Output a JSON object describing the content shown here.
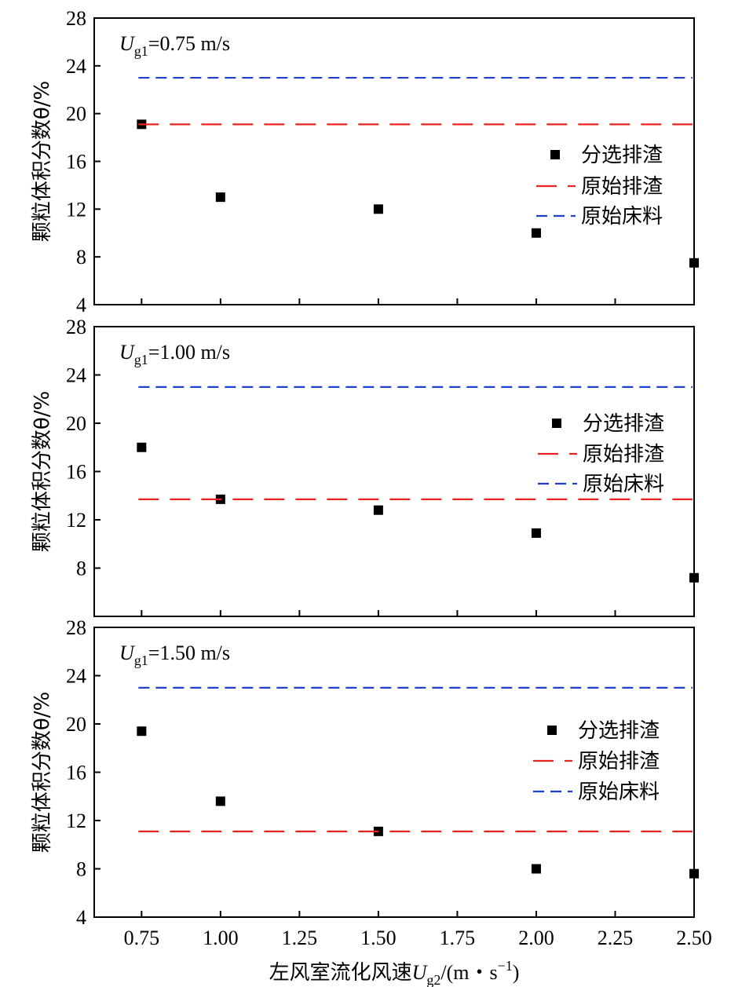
{
  "chart_data": [
    {
      "type": "scatter",
      "title": "",
      "annotation": {
        "symbol": "U",
        "subscript": "g1",
        "text": "=0.75 m/s"
      },
      "x": [
        0.75,
        1.0,
        1.5,
        2.0,
        2.5
      ],
      "xlim": [
        0.6,
        2.5
      ],
      "ylim": [
        4,
        28
      ],
      "yticks": [
        4,
        8,
        12,
        16,
        20,
        24,
        28
      ],
      "ylabel": "颗粒体积分数θ/%",
      "series": [
        {
          "name": "分选排渣",
          "kind": "markers",
          "color": "#000000",
          "values": [
            19.1,
            13.0,
            12.0,
            10.0,
            7.5
          ]
        },
        {
          "name": "原始排渣",
          "kind": "hline",
          "color": "#e8231f",
          "value": 19.1
        },
        {
          "name": "原始床料",
          "kind": "hline",
          "color": "#1f3fd0",
          "value": 23.0
        }
      ],
      "legend_position": "right"
    },
    {
      "type": "scatter",
      "title": "",
      "annotation": {
        "symbol": "U",
        "subscript": "g1",
        "text": "=1.00 m/s"
      },
      "x": [
        0.75,
        1.0,
        1.5,
        2.0,
        2.5
      ],
      "xlim": [
        0.6,
        2.5
      ],
      "ylim": [
        4,
        28
      ],
      "yticks": [
        8,
        12,
        16,
        20,
        24,
        28
      ],
      "ylabel": "颗粒体积分数θ/%",
      "series": [
        {
          "name": "分选排渣",
          "kind": "markers",
          "color": "#000000",
          "values": [
            18.0,
            13.7,
            12.8,
            10.9,
            7.2
          ]
        },
        {
          "name": "原始排渣",
          "kind": "hline",
          "color": "#e8231f",
          "value": 13.7
        },
        {
          "name": "原始床料",
          "kind": "hline",
          "color": "#1f3fd0",
          "value": 23.0
        }
      ],
      "legend_position": "right"
    },
    {
      "type": "scatter",
      "title": "",
      "annotation": {
        "symbol": "U",
        "subscript": "g1",
        "text": "=1.50 m/s"
      },
      "x": [
        0.75,
        1.0,
        1.5,
        2.0,
        2.5
      ],
      "xlim": [
        0.6,
        2.5
      ],
      "ylim": [
        4,
        28
      ],
      "yticks": [
        4,
        8,
        12,
        16,
        20,
        24,
        28
      ],
      "ylabel": "颗粒体积分数θ/%",
      "series": [
        {
          "name": "分选排渣",
          "kind": "markers",
          "color": "#000000",
          "values": [
            19.4,
            13.6,
            11.1,
            8.0,
            7.6
          ]
        },
        {
          "name": "原始排渣",
          "kind": "hline",
          "color": "#e8231f",
          "value": 11.1
        },
        {
          "name": "原始床料",
          "kind": "hline",
          "color": "#1f3fd0",
          "value": 23.0
        }
      ],
      "legend_position": "right"
    }
  ],
  "x_axis": {
    "ticks": [
      0.75,
      1.0,
      1.25,
      1.5,
      1.75,
      2.0,
      2.25,
      2.5
    ],
    "tick_labels": [
      "0.75",
      "1.00",
      "1.25",
      "1.50",
      "1.75",
      "2.00",
      "2.25",
      "2.50"
    ],
    "label_prefix": "左风室流化风速",
    "label_symbol": "U",
    "label_subscript": "g2",
    "label_unit_open": "/(m・s",
    "label_unit_sup": "−1",
    "label_unit_close": ")"
  }
}
